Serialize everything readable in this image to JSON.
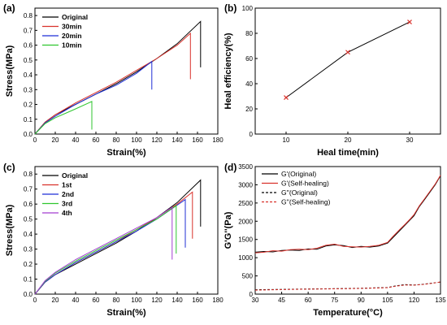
{
  "chart_data": [
    {
      "panel": "(a)",
      "type": "line",
      "xlabel": "Strain(%)",
      "ylabel": "Stress(MPa)",
      "xlim": [
        0,
        180
      ],
      "ylim": [
        0,
        0.85
      ],
      "xticks": [
        0,
        20,
        40,
        60,
        80,
        100,
        120,
        140,
        160,
        180
      ],
      "yticks": [
        0.0,
        0.1,
        0.2,
        0.3,
        0.4,
        0.5,
        0.6,
        0.7,
        0.8
      ],
      "legend_position": "top-left",
      "series": [
        {
          "name": "Original",
          "color": "#000000",
          "x": [
            0,
            10,
            20,
            40,
            60,
            80,
            100,
            120,
            140,
            163,
            163
          ],
          "y": [
            0,
            0.08,
            0.13,
            0.2,
            0.27,
            0.34,
            0.42,
            0.51,
            0.61,
            0.76,
            0.45
          ]
        },
        {
          "name": "30min",
          "color": "#d9312b",
          "x": [
            0,
            10,
            20,
            40,
            60,
            80,
            100,
            120,
            140,
            153,
            153
          ],
          "y": [
            0,
            0.08,
            0.13,
            0.21,
            0.28,
            0.35,
            0.43,
            0.51,
            0.6,
            0.68,
            0.37
          ]
        },
        {
          "name": "20min",
          "color": "#1f2fd6",
          "x": [
            0,
            10,
            20,
            40,
            60,
            80,
            100,
            115,
            115
          ],
          "y": [
            0,
            0.075,
            0.12,
            0.2,
            0.27,
            0.33,
            0.41,
            0.49,
            0.3
          ]
        },
        {
          "name": "10min",
          "color": "#2fc62f",
          "x": [
            0,
            10,
            20,
            30,
            40,
            56,
            56
          ],
          "y": [
            0,
            0.07,
            0.11,
            0.14,
            0.17,
            0.22,
            0.03
          ]
        }
      ]
    },
    {
      "panel": "(b)",
      "type": "line",
      "xlabel": "Heal time(min)",
      "ylabel": "Heal efficiency(%)",
      "xlim": [
        5,
        35
      ],
      "ylim": [
        0,
        100
      ],
      "xticks": [
        10,
        20,
        30
      ],
      "yticks": [
        0,
        20,
        40,
        60,
        80,
        100
      ],
      "series": [
        {
          "name": "",
          "color": "#000000",
          "marker_color": "#d9312b",
          "x": [
            10,
            20,
            30
          ],
          "y": [
            29,
            65,
            89
          ]
        }
      ]
    },
    {
      "panel": "(c)",
      "type": "line",
      "xlabel": "Strain(%)",
      "ylabel": "Stress(MPa)",
      "xlim": [
        0,
        180
      ],
      "ylim": [
        0,
        0.85
      ],
      "xticks": [
        0,
        20,
        40,
        60,
        80,
        100,
        120,
        140,
        160,
        180
      ],
      "yticks": [
        0.0,
        0.1,
        0.2,
        0.3,
        0.4,
        0.5,
        0.6,
        0.7,
        0.8
      ],
      "legend_position": "top-left",
      "series": [
        {
          "name": "Original",
          "color": "#000000",
          "x": [
            0,
            10,
            20,
            40,
            60,
            80,
            100,
            120,
            140,
            163,
            163
          ],
          "y": [
            0,
            0.08,
            0.13,
            0.2,
            0.27,
            0.34,
            0.42,
            0.51,
            0.61,
            0.76,
            0.45
          ]
        },
        {
          "name": "1st",
          "color": "#d9312b",
          "x": [
            0,
            10,
            20,
            40,
            60,
            80,
            100,
            120,
            140,
            155,
            155
          ],
          "y": [
            0,
            0.08,
            0.13,
            0.21,
            0.28,
            0.35,
            0.43,
            0.51,
            0.6,
            0.68,
            0.37
          ]
        },
        {
          "name": "2nd",
          "color": "#1f2fd6",
          "x": [
            0,
            10,
            20,
            40,
            60,
            80,
            100,
            120,
            148,
            148
          ],
          "y": [
            0,
            0.08,
            0.13,
            0.21,
            0.28,
            0.35,
            0.42,
            0.5,
            0.63,
            0.31
          ]
        },
        {
          "name": "3rd",
          "color": "#2fc62f",
          "x": [
            0,
            10,
            20,
            40,
            60,
            80,
            100,
            120,
            139,
            139
          ],
          "y": [
            0,
            0.085,
            0.14,
            0.22,
            0.29,
            0.36,
            0.43,
            0.5,
            0.59,
            0.27
          ]
        },
        {
          "name": "4th",
          "color": "#a23fd0",
          "x": [
            0,
            10,
            20,
            40,
            60,
            80,
            100,
            120,
            135,
            135
          ],
          "y": [
            0,
            0.09,
            0.145,
            0.23,
            0.3,
            0.37,
            0.44,
            0.51,
            0.58,
            0.23
          ]
        }
      ]
    },
    {
      "panel": "(d)",
      "type": "line",
      "xlabel": "Temperature(°C)",
      "ylabel": "G'G''(Pa)",
      "xlim": [
        30,
        135
      ],
      "ylim": [
        0,
        3500
      ],
      "xticks": [
        30,
        45,
        60,
        75,
        90,
        105,
        120,
        135
      ],
      "yticks": [
        0,
        500,
        1000,
        1500,
        2000,
        2500,
        3000,
        3500
      ],
      "legend_position": "top-left",
      "series": [
        {
          "name": "G'(Original)",
          "color": "#000000",
          "dash": false,
          "x": [
            30,
            35,
            40,
            45,
            50,
            55,
            60,
            65,
            70,
            75,
            80,
            85,
            90,
            95,
            100,
            105,
            108,
            112,
            115,
            118,
            120,
            123,
            126,
            129,
            132,
            135
          ],
          "y": [
            1150,
            1170,
            1160,
            1200,
            1210,
            1200,
            1240,
            1230,
            1320,
            1350,
            1330,
            1280,
            1310,
            1290,
            1320,
            1400,
            1550,
            1750,
            1900,
            2050,
            2150,
            2400,
            2600,
            2800,
            3000,
            3250
          ]
        },
        {
          "name": "G'(Self-healing)",
          "color": "#d9312b",
          "dash": false,
          "x": [
            30,
            35,
            40,
            45,
            50,
            55,
            60,
            65,
            70,
            75,
            80,
            85,
            90,
            95,
            100,
            105,
            108,
            112,
            115,
            118,
            120,
            123,
            126,
            129,
            132,
            135
          ],
          "y": [
            1130,
            1150,
            1190,
            1180,
            1220,
            1230,
            1220,
            1260,
            1340,
            1370,
            1310,
            1300,
            1290,
            1310,
            1340,
            1420,
            1580,
            1780,
            1920,
            2070,
            2180,
            2420,
            2620,
            2820,
            3020,
            3260
          ]
        },
        {
          "name": "G''(Original)",
          "color": "#000000",
          "dash": true,
          "x": [
            30,
            45,
            60,
            75,
            90,
            105,
            110,
            115,
            120,
            125,
            130,
            135
          ],
          "y": [
            120,
            130,
            140,
            150,
            160,
            180,
            230,
            260,
            250,
            270,
            300,
            330
          ]
        },
        {
          "name": "G''(Self-healing)",
          "color": "#d9312b",
          "dash": true,
          "x": [
            30,
            45,
            60,
            75,
            90,
            105,
            110,
            115,
            120,
            125,
            130,
            135
          ],
          "y": [
            110,
            125,
            135,
            145,
            155,
            175,
            220,
            250,
            245,
            265,
            295,
            335
          ]
        }
      ]
    }
  ]
}
